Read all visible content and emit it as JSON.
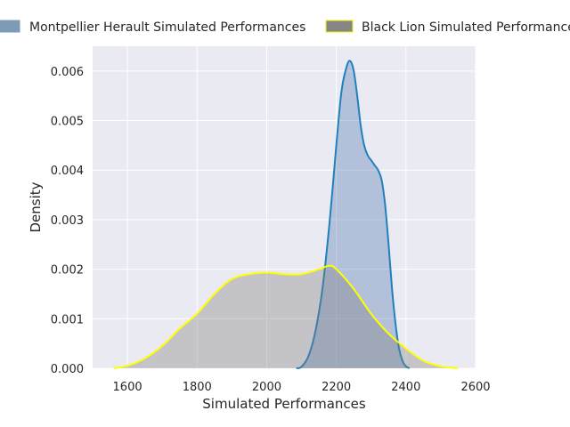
{
  "chart_data": {
    "type": "area",
    "title": "",
    "xlabel": "Simulated Performances",
    "ylabel": "Density",
    "xlim": [
      1500,
      2600
    ],
    "ylim": [
      0,
      0.0065
    ],
    "xticks": [
      "1600",
      "1800",
      "2000",
      "2200",
      "2400",
      "2600"
    ],
    "yticks": [
      "0.000",
      "0.001",
      "0.002",
      "0.003",
      "0.004",
      "0.005",
      "0.006"
    ],
    "grid": true,
    "legend_position": "top",
    "series": [
      {
        "name": "Montpellier Herault Simulated Performances",
        "fill_color": "#4c72b0",
        "line_color": "#1f80c0",
        "points": [
          [
            2085,
            0
          ],
          [
            2100,
            3e-05
          ],
          [
            2120,
            0.00025
          ],
          [
            2140,
            0.00075
          ],
          [
            2160,
            0.0016
          ],
          [
            2180,
            0.0029
          ],
          [
            2200,
            0.0045
          ],
          [
            2215,
            0.0056
          ],
          [
            2230,
            0.0061
          ],
          [
            2240,
            0.0062
          ],
          [
            2250,
            0.006
          ],
          [
            2260,
            0.0055
          ],
          [
            2270,
            0.0049
          ],
          [
            2280,
            0.0045
          ],
          [
            2290,
            0.0043
          ],
          [
            2300,
            0.0042
          ],
          [
            2310,
            0.0041
          ],
          [
            2320,
            0.004
          ],
          [
            2330,
            0.0038
          ],
          [
            2340,
            0.0033
          ],
          [
            2350,
            0.0025
          ],
          [
            2360,
            0.0016
          ],
          [
            2370,
            0.0009
          ],
          [
            2380,
            0.0004
          ],
          [
            2390,
            0.00015
          ],
          [
            2400,
            4e-05
          ],
          [
            2410,
            0
          ]
        ]
      },
      {
        "name": "Black Lion Simulated Performances",
        "fill_color": "#7a7a7a",
        "line_color": "#ffff00",
        "points": [
          [
            1560,
            0
          ],
          [
            1600,
            5e-05
          ],
          [
            1650,
            0.0002
          ],
          [
            1700,
            0.00045
          ],
          [
            1750,
            0.0008
          ],
          [
            1800,
            0.0011
          ],
          [
            1850,
            0.0015
          ],
          [
            1900,
            0.0018
          ],
          [
            1950,
            0.0019
          ],
          [
            2000,
            0.00193
          ],
          [
            2050,
            0.0019
          ],
          [
            2100,
            0.0019
          ],
          [
            2150,
            0.002
          ],
          [
            2180,
            0.00207
          ],
          [
            2200,
            0.002
          ],
          [
            2250,
            0.0016
          ],
          [
            2300,
            0.0011
          ],
          [
            2350,
            0.0007
          ],
          [
            2400,
            0.0004
          ],
          [
            2450,
            0.00015
          ],
          [
            2500,
            4e-05
          ],
          [
            2550,
            0
          ]
        ]
      }
    ]
  }
}
